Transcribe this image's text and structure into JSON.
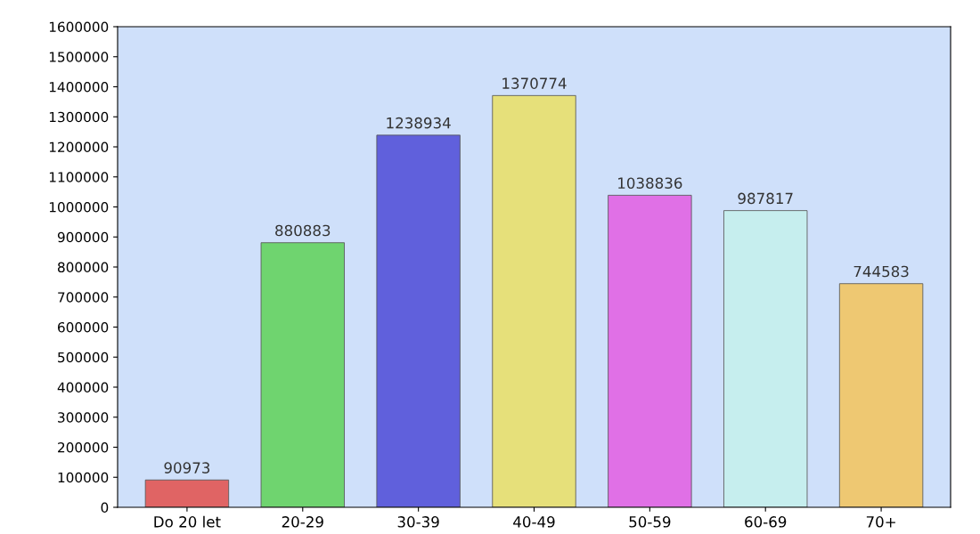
{
  "chart_data": {
    "type": "bar",
    "categories": [
      "Do 20 let",
      "20-29",
      "30-39",
      "40-49",
      "50-59",
      "60-69",
      "70+"
    ],
    "values": [
      90973,
      880883,
      1238934,
      1370774,
      1038836,
      987817,
      744583
    ],
    "colors": [
      "#e06464",
      "#6fd46f",
      "#6060dc",
      "#e6e07a",
      "#e070e6",
      "#c6eeee",
      "#eec872"
    ],
    "ylim": [
      0,
      1600000
    ],
    "yticks": [
      0,
      100000,
      200000,
      300000,
      400000,
      500000,
      600000,
      700000,
      800000,
      900000,
      1000000,
      1100000,
      1200000,
      1300000,
      1400000,
      1500000,
      1600000
    ],
    "data_labels": true,
    "grid": false
  }
}
